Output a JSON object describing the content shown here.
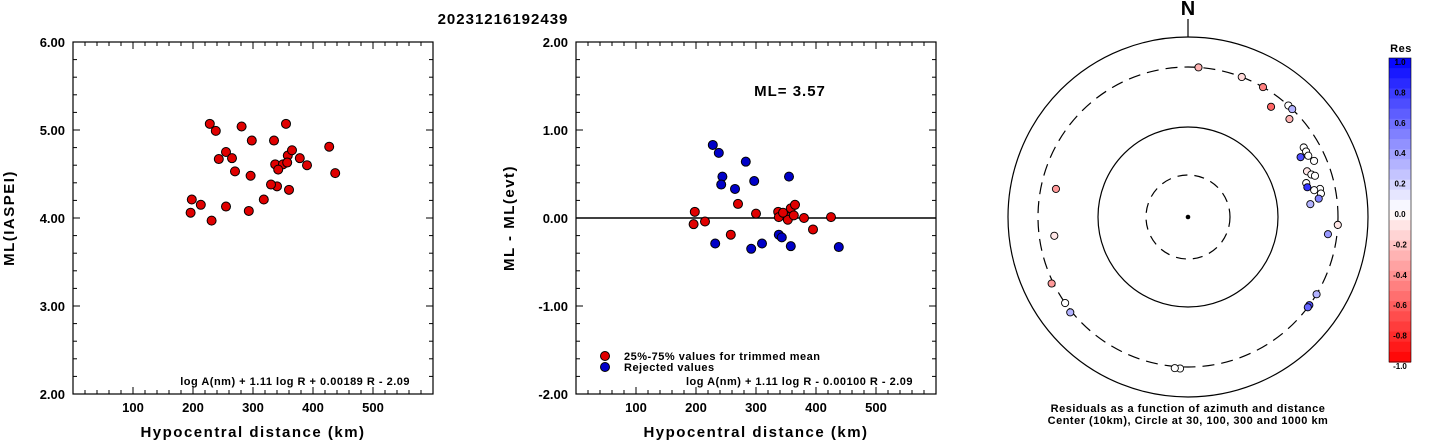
{
  "title": "20231216192439",
  "chart_data": [
    {
      "type": "scatter",
      "xlabel": "Hypocentral distance (km)",
      "ylabel": "ML(IASPEI)",
      "xlim": [
        0,
        600
      ],
      "ylim": [
        2.0,
        6.0
      ],
      "xticks": [
        "100",
        "200",
        "300",
        "400",
        "500"
      ],
      "xtick_values": [
        100,
        200,
        300,
        400,
        500
      ],
      "yticks": [
        "2.00",
        "3.00",
        "4.00",
        "5.00",
        "6.00"
      ],
      "ytick_values": [
        2,
        3,
        4,
        5,
        6
      ],
      "formula": "log A(nm) + 1.11 log R + 0.00189 R - 2.09",
      "point_color": "#e00000",
      "points": [
        [
          228,
          5.07
        ],
        [
          238,
          4.99
        ],
        [
          281,
          5.04
        ],
        [
          355,
          5.07
        ],
        [
          255,
          4.75
        ],
        [
          298,
          4.88
        ],
        [
          335,
          4.88
        ],
        [
          427,
          4.81
        ],
        [
          243,
          4.67
        ],
        [
          265,
          4.68
        ],
        [
          358,
          4.71
        ],
        [
          365,
          4.77
        ],
        [
          378,
          4.68
        ],
        [
          390,
          4.6
        ],
        [
          337,
          4.61
        ],
        [
          350,
          4.61
        ],
        [
          357,
          4.63
        ],
        [
          342,
          4.55
        ],
        [
          270,
          4.53
        ],
        [
          296,
          4.48
        ],
        [
          437,
          4.51
        ],
        [
          360,
          4.32
        ],
        [
          340,
          4.36
        ],
        [
          330,
          4.38
        ],
        [
          293,
          4.08
        ],
        [
          318,
          4.21
        ],
        [
          198,
          4.21
        ],
        [
          213,
          4.15
        ],
        [
          255,
          4.13
        ],
        [
          196,
          4.06
        ],
        [
          231,
          3.97
        ]
      ]
    },
    {
      "type": "scatter",
      "xlabel": "Hypocentral distance (km)",
      "ylabel": "ML - ML(evt)",
      "xlim": [
        0,
        600
      ],
      "ylim": [
        -2.0,
        2.0
      ],
      "xticks": [
        "100",
        "200",
        "300",
        "400",
        "500"
      ],
      "xtick_values": [
        100,
        200,
        300,
        400,
        500
      ],
      "yticks": [
        "-2.00",
        "-1.00",
        "0.00",
        "1.00",
        "2.00"
      ],
      "ytick_values": [
        -2,
        -1,
        0,
        1,
        2
      ],
      "ml_label": "ML= 3.57",
      "formula": "log A(nm) + 1.11 log R - 0.00100 R - 2.09",
      "legend": [
        "25%-75% values for trimmed mean",
        "Rejected values"
      ],
      "series": [
        {
          "color": "#e00000",
          "points": [
            [
              198,
              0.07
            ],
            [
              215,
              -0.04
            ],
            [
              196,
              -0.07
            ],
            [
              258,
              -0.19
            ],
            [
              270,
              0.16
            ],
            [
              300,
              0.05
            ],
            [
              337,
              0.07
            ],
            [
              338,
              0.01
            ],
            [
              355,
              0.01
            ],
            [
              358,
              0.11
            ],
            [
              365,
              0.15
            ],
            [
              380,
              0.0
            ],
            [
              395,
              -0.13
            ],
            [
              425,
              0.01
            ],
            [
              353,
              -0.02
            ],
            [
              363,
              0.03
            ],
            [
              345,
              0.06
            ]
          ]
        },
        {
          "color": "#0000c8",
          "points": [
            [
              228,
              0.83
            ],
            [
              238,
              0.74
            ],
            [
              283,
              0.64
            ],
            [
              355,
              0.47
            ],
            [
              244,
              0.47
            ],
            [
              242,
              0.38
            ],
            [
              265,
              0.33
            ],
            [
              297,
              0.42
            ],
            [
              338,
              -0.19
            ],
            [
              343,
              -0.22
            ],
            [
              358,
              -0.32
            ],
            [
              232,
              -0.29
            ],
            [
              310,
              -0.29
            ],
            [
              292,
              -0.35
            ],
            [
              438,
              -0.33
            ]
          ]
        }
      ]
    },
    {
      "type": "polar",
      "north_label": "N",
      "caption": [
        "Residuals as a function of azimuth and distance",
        "Center (10km), Circle at 30, 100, 300 and 1000 km"
      ],
      "colorbar_title": "Res",
      "colorbar_ticks": [
        "1.0",
        "0.8",
        "0.6",
        "0.4",
        "0.2",
        "0.0",
        "-0.2",
        "-0.4",
        "-0.6",
        "-0.8",
        "-1.0"
      ],
      "colorbar_values": [
        1.0,
        0.8,
        0.6,
        0.4,
        0.2,
        0.0,
        -0.2,
        -0.4,
        -0.6,
        -0.8,
        -1.0
      ],
      "stations": [
        {
          "az": 4,
          "dist": 300,
          "res": -0.3
        },
        {
          "az": 21,
          "dist": 300,
          "res": -0.15
        },
        {
          "az": 30,
          "dist": 300,
          "res": -0.5
        },
        {
          "az": 37,
          "dist": 260,
          "res": -0.6
        },
        {
          "az": 42,
          "dist": 300,
          "res": 0.0
        },
        {
          "az": 44,
          "dist": 300,
          "res": 0.3
        },
        {
          "az": 46,
          "dist": 270,
          "res": -0.3
        },
        {
          "az": 59,
          "dist": 250,
          "res": 0.0
        },
        {
          "az": 61,
          "dist": 250,
          "res": 0.0
        },
        {
          "az": 63,
          "dist": 250,
          "res": 0.0
        },
        {
          "az": 62,
          "dist": 225,
          "res": 0.7
        },
        {
          "az": 66,
          "dist": 260,
          "res": 0.0
        },
        {
          "az": 69,
          "dist": 225,
          "res": -0.1
        },
        {
          "az": 71,
          "dist": 235,
          "res": 0.0
        },
        {
          "az": 72,
          "dist": 245,
          "res": 0.0
        },
        {
          "az": 74,
          "dist": 210,
          "res": 0.0
        },
        {
          "az": 78,
          "dist": 250,
          "res": 0.0
        },
        {
          "az": 78,
          "dist": 230,
          "res": 0.0
        },
        {
          "az": 76,
          "dist": 210,
          "res": 0.8
        },
        {
          "az": 80,
          "dist": 250,
          "res": 0.0
        },
        {
          "az": 82,
          "dist": 240,
          "res": 0.5
        },
        {
          "az": 84,
          "dist": 210,
          "res": 0.3
        },
        {
          "az": 93,
          "dist": 300,
          "res": -0.1
        },
        {
          "az": 97,
          "dist": 270,
          "res": 0.4
        },
        {
          "az": 121,
          "dist": 300,
          "res": 0.3
        },
        {
          "az": 126,
          "dist": 300,
          "res": 0.7
        },
        {
          "az": 127,
          "dist": 300,
          "res": 0.6
        },
        {
          "az": 183,
          "dist": 340,
          "res": 0.0
        },
        {
          "az": 185,
          "dist": 340,
          "res": 0.0
        },
        {
          "az": 231,
          "dist": 335,
          "res": 0.3
        },
        {
          "az": 235,
          "dist": 300,
          "res": 0.0
        },
        {
          "az": 244,
          "dist": 340,
          "res": -0.4
        },
        {
          "az": 262,
          "dist": 250,
          "res": -0.1
        },
        {
          "az": 282,
          "dist": 250,
          "res": -0.4
        }
      ]
    }
  ]
}
